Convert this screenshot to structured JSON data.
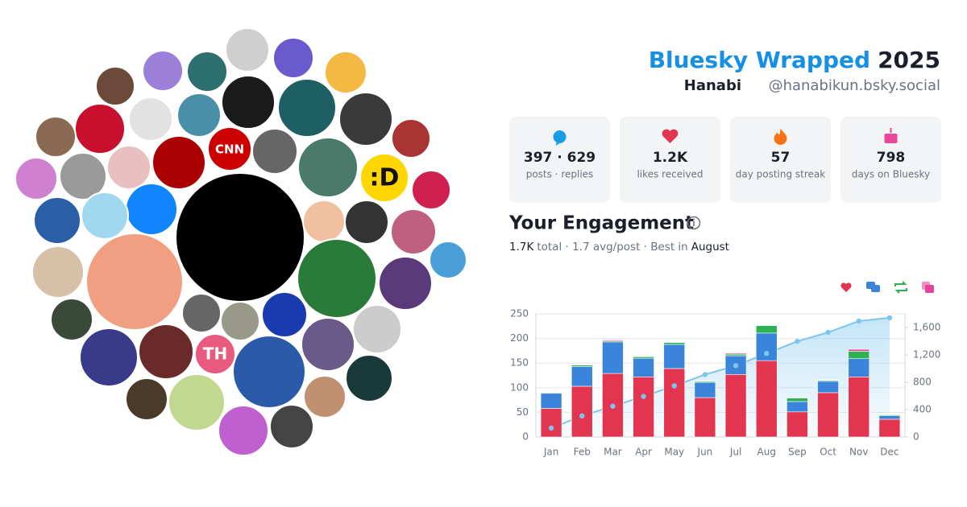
{
  "header": {
    "title": "Bluesky Wrapped",
    "year": "2025",
    "name": "Hanabi",
    "handle": "@hanabikun.bsky.social"
  },
  "stats": [
    {
      "value": "397 · 629",
      "label": "posts · replies"
    },
    {
      "value": "1.2K",
      "label": "likes received"
    },
    {
      "value": "57",
      "label": "day posting streak"
    },
    {
      "value": "798",
      "label": "days on Bluesky"
    }
  ],
  "engagement": {
    "title": "Your Engagement",
    "total": "1.7K",
    "summary": "total · 1.7 avg/post · Best in",
    "best": "August"
  },
  "avatar_texts": [
    "CNN",
    ":D",
    "TH"
  ],
  "chart_data": {
    "type": "bar",
    "categories": [
      "Jan",
      "Feb",
      "Mar",
      "Apr",
      "May",
      "Jun",
      "Jul",
      "Aug",
      "Sep",
      "Oct",
      "Nov",
      "Dec"
    ],
    "series": [
      {
        "color": "#e3354f",
        "values": [
          58,
          103,
          129,
          122,
          139,
          80,
          127,
          155,
          51,
          90,
          122,
          36
        ]
      },
      {
        "color": "#3a84dc",
        "values": [
          31,
          40,
          64,
          38,
          49,
          31,
          38,
          56,
          21,
          23,
          37,
          7
        ]
      },
      {
        "color": "#2db152",
        "values": [
          1,
          3,
          2,
          3,
          4,
          2,
          3,
          15,
          7,
          2,
          15,
          2
        ]
      },
      {
        "color": "#e4439a",
        "values": [
          1,
          1,
          2,
          1,
          1,
          1,
          2,
          1,
          1,
          1,
          4,
          1
        ]
      },
      {
        "type": "line",
        "axis": "y2",
        "color": "#7cc6ee",
        "values": [
          130,
          308,
          450,
          593,
          747,
          913,
          1043,
          1221,
          1398,
          1529,
          1695,
          1742
        ]
      }
    ],
    "ylim": [
      0,
      250
    ],
    "yticks": [
      0,
      50,
      100,
      150,
      200,
      250
    ],
    "y2lim": [
      0,
      1800
    ],
    "y2ticks": [
      0,
      400,
      800,
      {
        "value": 1200,
        "label": "1,200"
      },
      {
        "value": 1600,
        "label": "1,600"
      }
    ],
    "grid": true
  }
}
